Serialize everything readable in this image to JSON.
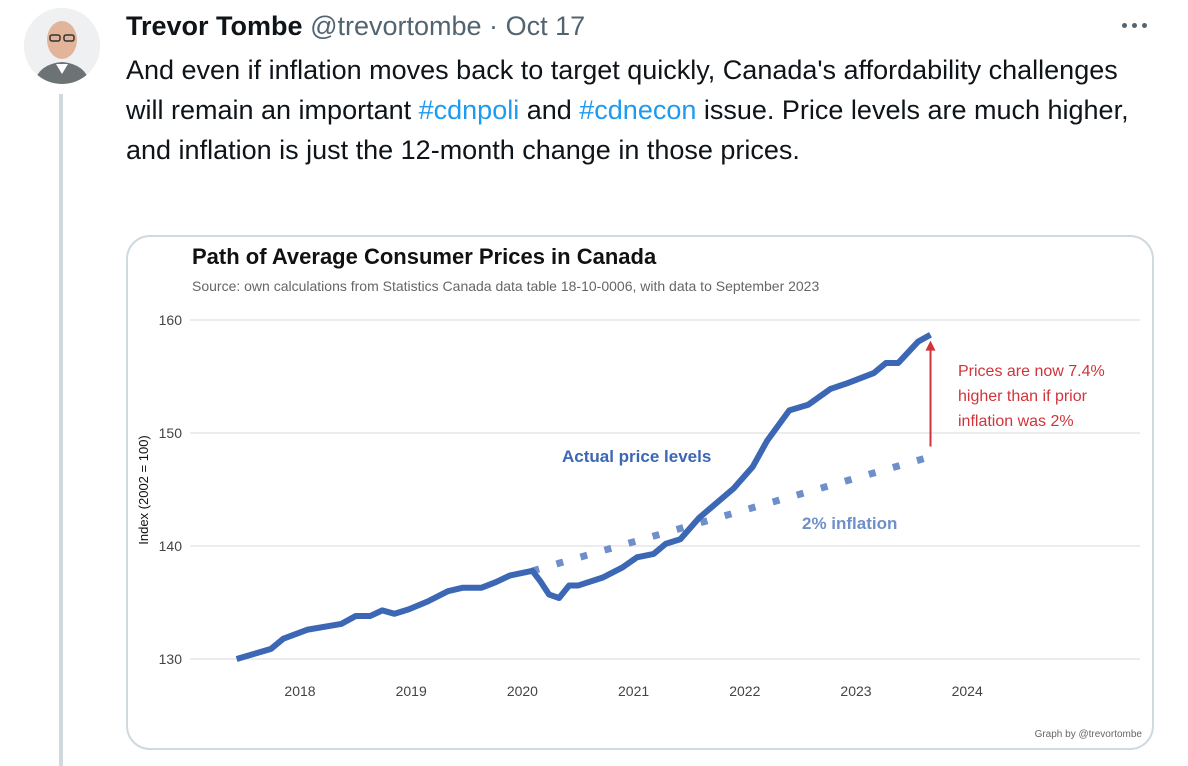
{
  "tweet": {
    "author_name": "Trevor Tombe",
    "handle": "@trevortombe",
    "separator": "·",
    "date": "Oct 17",
    "text_parts": [
      "And even if inflation moves back to target quickly, Canada's affordability challenges will remain an important ",
      "#cdnpoli",
      " and ",
      "#cdnecon",
      " issue. Price levels are much higher, and inflation is just the 12-month change in those prices."
    ],
    "more_icon": "more-horizontal-icon",
    "hashtag_color": "#1d9bf0"
  },
  "chart_data": {
    "type": "line",
    "title": "Path of Average Consumer Prices in Canada",
    "subtitle": "Source: own calculations from Statistics Canada data table 18-10-0006, with data to September 2023",
    "ylabel": "Index (2002 = 100)",
    "xlabel": "",
    "ylim": [
      130,
      160
    ],
    "yticks": [
      "130",
      "140",
      "150",
      "160"
    ],
    "xticks": [
      "2018",
      "2019",
      "2020",
      "2021",
      "2022",
      "2023",
      "2024"
    ],
    "grid": true,
    "credit": "Graph by @trevortombe",
    "series": [
      {
        "name": "Actual price levels",
        "color": "#3b67b5",
        "style": "solid",
        "x": [
          2017.43,
          2017.74,
          2017.85,
          2018.07,
          2018.37,
          2018.5,
          2018.63,
          2018.74,
          2018.85,
          2018.98,
          2019.15,
          2019.33,
          2019.46,
          2019.63,
          2019.76,
          2019.89,
          2020.09,
          2020.16,
          2020.24,
          2020.33,
          2020.42,
          2020.5,
          2020.72,
          2020.9,
          2021.03,
          2021.18,
          2021.29,
          2021.42,
          2021.59,
          2021.9,
          2022.07,
          2022.2,
          2022.4,
          2022.57,
          2022.77,
          2022.92,
          2023.16,
          2023.27,
          2023.38,
          2023.56,
          2023.67
        ],
        "y": [
          130.0,
          130.9,
          131.8,
          132.6,
          133.1,
          133.8,
          133.8,
          134.3,
          134.0,
          134.4,
          135.1,
          136.0,
          136.3,
          136.3,
          136.8,
          137.4,
          137.8,
          136.9,
          135.7,
          135.4,
          136.5,
          136.5,
          137.2,
          138.1,
          139.0,
          139.3,
          140.2,
          140.6,
          142.5,
          145.1,
          147.0,
          149.3,
          152.0,
          152.5,
          153.9,
          154.4,
          155.3,
          156.2,
          156.2,
          158.1,
          158.7
        ]
      },
      {
        "name": "2% inflation",
        "color": "#6f8fca",
        "style": "dotted",
        "x": [
          2020.09,
          2023.67
        ],
        "y": [
          137.8,
          147.9
        ]
      }
    ],
    "annotation": {
      "lines": [
        "Prices are now 7.4%",
        "higher than if prior",
        "inflation was 2%"
      ],
      "color": "#d0343a",
      "arrow_from": [
        2023.67,
        148.8
      ],
      "arrow_to": [
        2023.67,
        158.0
      ]
    }
  }
}
